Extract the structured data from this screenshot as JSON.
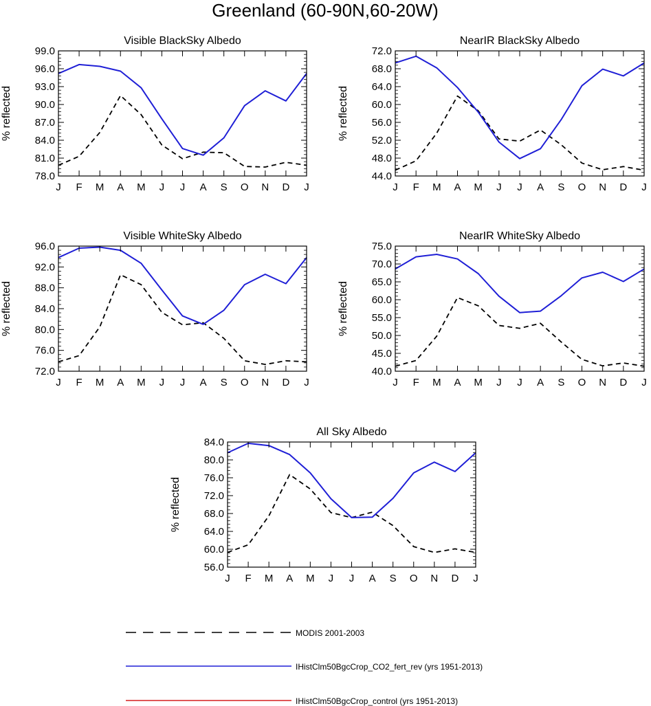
{
  "figure_title": "Greenland (60-90N,60-20W)",
  "colors": {
    "modis": "#000000",
    "co2_fert_rev": "#1f1fd6",
    "control": "#d61f1f"
  },
  "legend": [
    {
      "label": "MODIS 2001-2003",
      "style": "dashed",
      "color": "#000000"
    },
    {
      "label": "IHistClm50BgcCrop_CO2_fert_rev (yrs 1951-2013)",
      "style": "solid",
      "color": "#1f1fd6"
    },
    {
      "label": "IHistClm50BgcCrop_control (yrs 1951-2013)",
      "style": "solid",
      "color": "#d61f1f"
    }
  ],
  "chart_data": [
    {
      "type": "line",
      "title": "Visible BlackSky Albedo",
      "ylabel": "% reflected",
      "x": [
        "J",
        "F",
        "M",
        "A",
        "M",
        "J",
        "J",
        "A",
        "S",
        "O",
        "N",
        "D",
        "J"
      ],
      "ylim": [
        78.0,
        99.0
      ],
      "yticks": [
        "78.0",
        "81.0",
        "84.0",
        "87.0",
        "90.0",
        "93.0",
        "96.0",
        "99.0"
      ],
      "series": [
        {
          "name": "MODIS 2001-2003",
          "values": [
            79.8,
            81.3,
            85.3,
            91.5,
            88.3,
            83.2,
            80.9,
            82.0,
            81.9,
            79.6,
            79.5,
            80.3,
            79.8
          ]
        },
        {
          "name": "IHistClm50BgcCrop_CO2_fert_rev (yrs 1951-2013)",
          "values": [
            95.2,
            96.7,
            96.4,
            95.6,
            92.8,
            87.6,
            82.6,
            81.5,
            84.4,
            89.8,
            92.3,
            90.6,
            95.2
          ]
        }
      ]
    },
    {
      "type": "line",
      "title": "NearIR BlackSky Albedo",
      "ylabel": "% reflected",
      "x": [
        "J",
        "F",
        "M",
        "A",
        "M",
        "J",
        "J",
        "A",
        "S",
        "O",
        "N",
        "D",
        "J"
      ],
      "ylim": [
        44.0,
        72.0
      ],
      "yticks": [
        "44.0",
        "48.0",
        "52.0",
        "56.0",
        "60.0",
        "64.0",
        "68.0",
        "72.0"
      ],
      "series": [
        {
          "name": "MODIS 2001-2003",
          "values": [
            45.3,
            47.4,
            53.6,
            61.9,
            58.6,
            52.3,
            51.8,
            54.3,
            51.0,
            46.9,
            45.4,
            46.1,
            45.3
          ]
        },
        {
          "name": "IHistClm50BgcCrop_CO2_fert_rev (yrs 1951-2013)",
          "values": [
            69.3,
            70.8,
            68.2,
            63.8,
            58.3,
            51.6,
            47.9,
            50.1,
            56.6,
            64.2,
            67.9,
            66.4,
            69.3
          ]
        }
      ]
    },
    {
      "type": "line",
      "title": "Visible WhiteSky Albedo",
      "ylabel": "% reflected",
      "x": [
        "J",
        "F",
        "M",
        "A",
        "M",
        "J",
        "J",
        "A",
        "S",
        "O",
        "N",
        "D",
        "J"
      ],
      "ylim": [
        72.0,
        96.0
      ],
      "yticks": [
        "72.0",
        "76.0",
        "80.0",
        "84.0",
        "88.0",
        "92.0",
        "96.0"
      ],
      "series": [
        {
          "name": "MODIS 2001-2003",
          "values": [
            73.8,
            75.0,
            80.5,
            90.5,
            88.6,
            83.3,
            80.9,
            81.3,
            78.3,
            74.0,
            73.3,
            74.0,
            73.8
          ]
        },
        {
          "name": "IHistClm50BgcCrop_CO2_fert_rev (yrs 1951-2013)",
          "values": [
            93.8,
            95.6,
            95.8,
            95.2,
            92.7,
            87.6,
            82.6,
            81.0,
            83.7,
            88.6,
            90.6,
            88.8,
            93.8
          ]
        }
      ]
    },
    {
      "type": "line",
      "title": "NearIR WhiteSky Albedo",
      "ylabel": "% reflected",
      "x": [
        "J",
        "F",
        "M",
        "A",
        "M",
        "J",
        "J",
        "A",
        "S",
        "O",
        "N",
        "D",
        "J"
      ],
      "ylim": [
        40.0,
        75.0
      ],
      "yticks": [
        "40.0",
        "45.0",
        "50.0",
        "55.0",
        "60.0",
        "65.0",
        "70.0",
        "75.0"
      ],
      "series": [
        {
          "name": "MODIS 2001-2003",
          "values": [
            41.4,
            43.0,
            49.8,
            60.6,
            58.3,
            52.8,
            52.0,
            53.4,
            48.2,
            43.3,
            41.5,
            42.3,
            41.4
          ]
        },
        {
          "name": "IHistClm50BgcCrop_CO2_fert_rev (yrs 1951-2013)",
          "values": [
            68.6,
            72.0,
            72.7,
            71.4,
            67.3,
            61.0,
            56.4,
            56.8,
            61.1,
            66.1,
            67.7,
            65.1,
            68.6
          ]
        }
      ]
    },
    {
      "type": "line",
      "title": "All Sky Albedo",
      "ylabel": "% reflected",
      "x": [
        "J",
        "F",
        "M",
        "A",
        "M",
        "J",
        "J",
        "A",
        "S",
        "O",
        "N",
        "D",
        "J"
      ],
      "ylim": [
        56.0,
        84.0
      ],
      "yticks": [
        "56.0",
        "60.0",
        "64.0",
        "68.0",
        "72.0",
        "76.0",
        "80.0",
        "84.0"
      ],
      "series": [
        {
          "name": "MODIS 2001-2003",
          "values": [
            59.3,
            61.0,
            67.5,
            76.7,
            73.5,
            68.2,
            67.1,
            68.3,
            65.3,
            60.6,
            59.3,
            60.1,
            59.3
          ]
        },
        {
          "name": "IHistClm50BgcCrop_CO2_fert_rev (yrs 1951-2013)",
          "values": [
            81.6,
            83.7,
            83.2,
            81.2,
            77.1,
            71.3,
            67.1,
            67.2,
            71.4,
            77.1,
            79.5,
            77.4,
            81.6
          ]
        }
      ]
    }
  ]
}
